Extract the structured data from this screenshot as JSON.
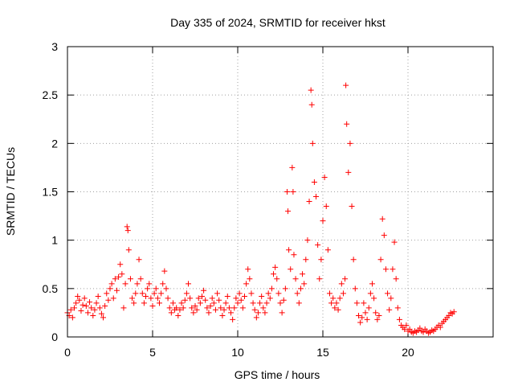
{
  "chart_data": {
    "type": "scatter",
    "title": "Day 335 of 2024, SRMTID for receiver hkst",
    "xlabel": "GPS time / hours",
    "ylabel": "SRMTID / TECUs",
    "xlim": [
      0,
      25
    ],
    "ylim": [
      0,
      3
    ],
    "xticks": [
      0,
      5,
      10,
      15,
      20
    ],
    "yticks": [
      0,
      0.5,
      1,
      1.5,
      2,
      2.5,
      3
    ],
    "xtick_labels": [
      "0",
      "5",
      "10",
      "15",
      "20"
    ],
    "ytick_labels": [
      "0",
      "0.5",
      "1",
      "1.5",
      "2",
      "2.5",
      "3"
    ],
    "grid": true,
    "marker": "+",
    "color": "#ff0000",
    "series": [
      {
        "name": "SRMTID",
        "points": [
          [
            0.0,
            0.25
          ],
          [
            0.1,
            0.22
          ],
          [
            0.2,
            0.28
          ],
          [
            0.3,
            0.2
          ],
          [
            0.4,
            0.3
          ],
          [
            0.5,
            0.35
          ],
          [
            0.6,
            0.42
          ],
          [
            0.7,
            0.38
          ],
          [
            0.8,
            0.27
          ],
          [
            0.9,
            0.33
          ],
          [
            1.0,
            0.4
          ],
          [
            1.1,
            0.32
          ],
          [
            1.2,
            0.25
          ],
          [
            1.3,
            0.36
          ],
          [
            1.4,
            0.3
          ],
          [
            1.5,
            0.22
          ],
          [
            1.6,
            0.28
          ],
          [
            1.7,
            0.35
          ],
          [
            1.8,
            0.42
          ],
          [
            1.9,
            0.3
          ],
          [
            2.0,
            0.24
          ],
          [
            2.1,
            0.2
          ],
          [
            2.2,
            0.32
          ],
          [
            2.3,
            0.45
          ],
          [
            2.4,
            0.38
          ],
          [
            2.5,
            0.5
          ],
          [
            2.6,
            0.55
          ],
          [
            2.7,
            0.4
          ],
          [
            2.8,
            0.6
          ],
          [
            2.9,
            0.48
          ],
          [
            3.0,
            0.62
          ],
          [
            3.1,
            0.75
          ],
          [
            3.2,
            0.65
          ],
          [
            3.3,
            0.3
          ],
          [
            3.4,
            0.55
          ],
          [
            3.5,
            1.14
          ],
          [
            3.55,
            1.1
          ],
          [
            3.6,
            0.9
          ],
          [
            3.7,
            0.6
          ],
          [
            3.8,
            0.4
          ],
          [
            3.9,
            0.35
          ],
          [
            4.0,
            0.45
          ],
          [
            4.1,
            0.55
          ],
          [
            4.2,
            0.8
          ],
          [
            4.3,
            0.6
          ],
          [
            4.4,
            0.45
          ],
          [
            4.5,
            0.35
          ],
          [
            4.6,
            0.42
          ],
          [
            4.7,
            0.5
          ],
          [
            4.8,
            0.55
          ],
          [
            4.9,
            0.4
          ],
          [
            5.0,
            0.32
          ],
          [
            5.1,
            0.45
          ],
          [
            5.2,
            0.5
          ],
          [
            5.3,
            0.4
          ],
          [
            5.4,
            0.35
          ],
          [
            5.5,
            0.45
          ],
          [
            5.6,
            0.55
          ],
          [
            5.7,
            0.68
          ],
          [
            5.8,
            0.5
          ],
          [
            5.9,
            0.4
          ],
          [
            6.0,
            0.3
          ],
          [
            6.1,
            0.25
          ],
          [
            6.2,
            0.35
          ],
          [
            6.3,
            0.28
          ],
          [
            6.4,
            0.3
          ],
          [
            6.5,
            0.22
          ],
          [
            6.6,
            0.28
          ],
          [
            6.7,
            0.35
          ],
          [
            6.8,
            0.3
          ],
          [
            6.9,
            0.38
          ],
          [
            7.0,
            0.45
          ],
          [
            7.1,
            0.55
          ],
          [
            7.2,
            0.4
          ],
          [
            7.3,
            0.3
          ],
          [
            7.4,
            0.25
          ],
          [
            7.5,
            0.32
          ],
          [
            7.6,
            0.28
          ],
          [
            7.7,
            0.4
          ],
          [
            7.8,
            0.35
          ],
          [
            7.9,
            0.42
          ],
          [
            8.0,
            0.48
          ],
          [
            8.1,
            0.38
          ],
          [
            8.2,
            0.3
          ],
          [
            8.3,
            0.25
          ],
          [
            8.4,
            0.32
          ],
          [
            8.5,
            0.4
          ],
          [
            8.6,
            0.35
          ],
          [
            8.7,
            0.28
          ],
          [
            8.8,
            0.45
          ],
          [
            8.9,
            0.38
          ],
          [
            9.0,
            0.3
          ],
          [
            9.1,
            0.22
          ],
          [
            9.2,
            0.28
          ],
          [
            9.3,
            0.35
          ],
          [
            9.4,
            0.42
          ],
          [
            9.5,
            0.3
          ],
          [
            9.6,
            0.25
          ],
          [
            9.7,
            0.18
          ],
          [
            9.8,
            0.3
          ],
          [
            9.9,
            0.4
          ],
          [
            10.0,
            0.35
          ],
          [
            10.1,
            0.45
          ],
          [
            10.2,
            0.38
          ],
          [
            10.3,
            0.3
          ],
          [
            10.4,
            0.42
          ],
          [
            10.5,
            0.55
          ],
          [
            10.6,
            0.7
          ],
          [
            10.7,
            0.6
          ],
          [
            10.8,
            0.45
          ],
          [
            10.9,
            0.35
          ],
          [
            11.0,
            0.28
          ],
          [
            11.1,
            0.2
          ],
          [
            11.2,
            0.25
          ],
          [
            11.3,
            0.35
          ],
          [
            11.4,
            0.42
          ],
          [
            11.5,
            0.3
          ],
          [
            11.6,
            0.25
          ],
          [
            11.7,
            0.35
          ],
          [
            11.8,
            0.45
          ],
          [
            11.9,
            0.4
          ],
          [
            12.0,
            0.5
          ],
          [
            12.1,
            0.65
          ],
          [
            12.2,
            0.72
          ],
          [
            12.3,
            0.6
          ],
          [
            12.4,
            0.45
          ],
          [
            12.5,
            0.35
          ],
          [
            12.6,
            0.25
          ],
          [
            12.7,
            0.38
          ],
          [
            12.8,
            0.5
          ],
          [
            12.9,
            1.5
          ],
          [
            12.95,
            1.3
          ],
          [
            13.0,
            0.9
          ],
          [
            13.1,
            0.7
          ],
          [
            13.2,
            1.75
          ],
          [
            13.25,
            1.5
          ],
          [
            13.3,
            0.85
          ],
          [
            13.4,
            0.6
          ],
          [
            13.5,
            0.45
          ],
          [
            13.6,
            0.35
          ],
          [
            13.7,
            0.5
          ],
          [
            13.8,
            0.65
          ],
          [
            13.9,
            0.55
          ],
          [
            14.0,
            0.8
          ],
          [
            14.1,
            1.0
          ],
          [
            14.2,
            1.4
          ],
          [
            14.3,
            2.55
          ],
          [
            14.35,
            2.4
          ],
          [
            14.4,
            2.0
          ],
          [
            14.5,
            1.6
          ],
          [
            14.6,
            1.45
          ],
          [
            14.7,
            0.95
          ],
          [
            14.8,
            0.6
          ],
          [
            14.9,
            0.8
          ],
          [
            15.0,
            1.2
          ],
          [
            15.1,
            1.65
          ],
          [
            15.2,
            1.35
          ],
          [
            15.3,
            0.9
          ],
          [
            15.4,
            0.45
          ],
          [
            15.5,
            0.35
          ],
          [
            15.6,
            0.4
          ],
          [
            15.7,
            0.3
          ],
          [
            15.8,
            0.35
          ],
          [
            15.9,
            0.28
          ],
          [
            16.0,
            0.4
          ],
          [
            16.1,
            0.55
          ],
          [
            16.2,
            0.45
          ],
          [
            16.3,
            0.6
          ],
          [
            16.35,
            2.6
          ],
          [
            16.4,
            2.2
          ],
          [
            16.5,
            1.7
          ],
          [
            16.6,
            2.0
          ],
          [
            16.7,
            1.35
          ],
          [
            16.8,
            0.8
          ],
          [
            16.9,
            0.5
          ],
          [
            17.0,
            0.35
          ],
          [
            17.1,
            0.22
          ],
          [
            17.2,
            0.15
          ],
          [
            17.3,
            0.2
          ],
          [
            17.4,
            0.35
          ],
          [
            17.5,
            0.25
          ],
          [
            17.6,
            0.18
          ],
          [
            17.7,
            0.3
          ],
          [
            17.8,
            0.45
          ],
          [
            17.9,
            0.55
          ],
          [
            18.0,
            0.4
          ],
          [
            18.1,
            0.25
          ],
          [
            18.2,
            0.18
          ],
          [
            18.3,
            0.22
          ],
          [
            18.4,
            0.8
          ],
          [
            18.5,
            1.22
          ],
          [
            18.6,
            1.05
          ],
          [
            18.7,
            0.7
          ],
          [
            18.8,
            0.45
          ],
          [
            18.9,
            0.28
          ],
          [
            19.0,
            0.4
          ],
          [
            19.1,
            0.7
          ],
          [
            19.2,
            0.98
          ],
          [
            19.3,
            0.6
          ],
          [
            19.4,
            0.3
          ],
          [
            19.5,
            0.18
          ],
          [
            19.6,
            0.12
          ],
          [
            19.7,
            0.1
          ],
          [
            19.8,
            0.08
          ],
          [
            19.9,
            0.12
          ],
          [
            20.0,
            0.06
          ],
          [
            20.1,
            0.08
          ],
          [
            20.2,
            0.05
          ],
          [
            20.3,
            0.04
          ],
          [
            20.4,
            0.06
          ],
          [
            20.5,
            0.05
          ],
          [
            20.6,
            0.07
          ],
          [
            20.7,
            0.09
          ],
          [
            20.8,
            0.06
          ],
          [
            20.9,
            0.05
          ],
          [
            21.0,
            0.08
          ],
          [
            21.1,
            0.06
          ],
          [
            21.2,
            0.04
          ],
          [
            21.3,
            0.05
          ],
          [
            21.4,
            0.07
          ],
          [
            21.5,
            0.06
          ],
          [
            21.6,
            0.08
          ],
          [
            21.7,
            0.1
          ],
          [
            21.8,
            0.12
          ],
          [
            21.9,
            0.1
          ],
          [
            22.0,
            0.14
          ],
          [
            22.1,
            0.16
          ],
          [
            22.2,
            0.18
          ],
          [
            22.3,
            0.2
          ],
          [
            22.4,
            0.22
          ],
          [
            22.5,
            0.25
          ],
          [
            22.6,
            0.24
          ],
          [
            22.7,
            0.26
          ]
        ]
      }
    ]
  }
}
